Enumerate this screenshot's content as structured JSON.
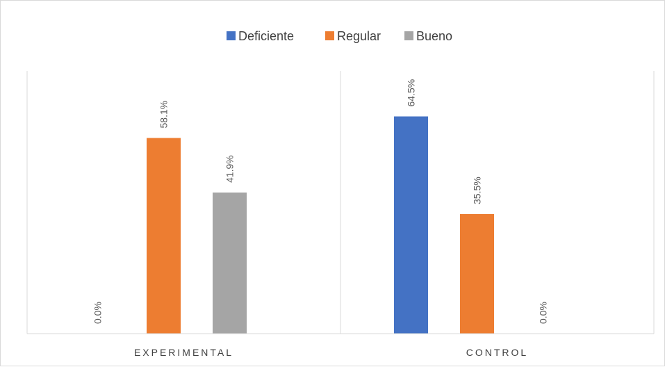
{
  "chart_data": {
    "type": "bar",
    "categories": [
      "EXPERIMENTAL",
      "CONTROL"
    ],
    "series": [
      {
        "name": "Deficiente",
        "values": [
          0.0,
          64.5
        ],
        "labels": [
          "0.0%",
          "64.5%"
        ],
        "color": "#4472c4"
      },
      {
        "name": "Regular",
        "values": [
          58.1,
          35.5
        ],
        "labels": [
          "58.1%",
          "35.5%"
        ],
        "color": "#ed7d31"
      },
      {
        "name": "Bueno",
        "values": [
          41.9,
          0.0
        ],
        "labels": [
          "41.9%",
          "0.0%"
        ],
        "color": "#a5a5a5"
      }
    ],
    "ylim": [
      0,
      70
    ],
    "grid": false,
    "legend_position": "top",
    "data_label_orientation": "vertical",
    "colors": {
      "axis": "#d9d9d9",
      "text": "#404040",
      "label": "#595959"
    }
  }
}
